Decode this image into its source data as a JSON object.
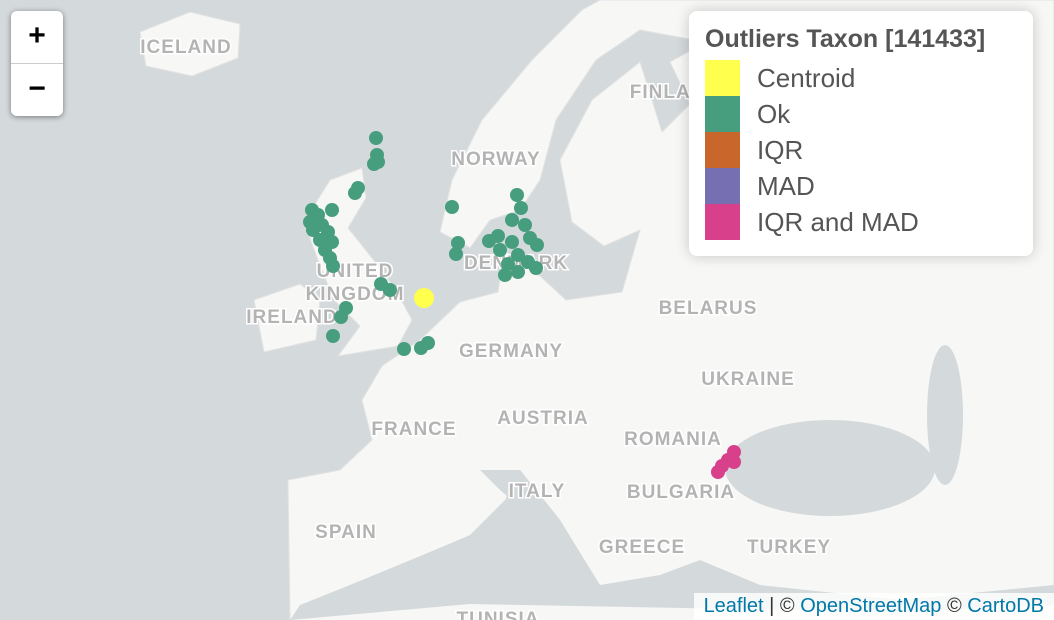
{
  "controls": {
    "zoom_in": "+",
    "zoom_out": "−"
  },
  "legend": {
    "title": "Outliers Taxon [141433]",
    "items": [
      {
        "label": "Centroid",
        "color": "#ffff4d"
      },
      {
        "label": "Ok",
        "color": "#479e7e"
      },
      {
        "label": "IQR",
        "color": "#c9662c"
      },
      {
        "label": "MAD",
        "color": "#7670b2"
      },
      {
        "label": "IQR and MAD",
        "color": "#d9408c"
      }
    ]
  },
  "map_labels": {
    "iceland": "ICELAND",
    "norway": "NORWAY",
    "finland": "FINLAND",
    "uk1": "UNITED",
    "uk2": "KINGDOM",
    "ireland": "IRELAND",
    "denmark": "DENMARK",
    "belarus": "BELARUS",
    "germany": "GERMANY",
    "ukraine": "UKRAINE",
    "france": "FRANCE",
    "austria": "AUSTRIA",
    "romania": "ROMANIA",
    "italy": "ITALY",
    "bulgaria": "BULGARIA",
    "spain": "SPAIN",
    "greece": "GREECE",
    "turkey": "TURKEY",
    "tunisia": "TUNISIA"
  },
  "attribution": {
    "leaflet": "Leaflet",
    "sep1": " | © ",
    "osm": "OpenStreetMap",
    "sep2": " © ",
    "carto": "CartoDB"
  }
}
